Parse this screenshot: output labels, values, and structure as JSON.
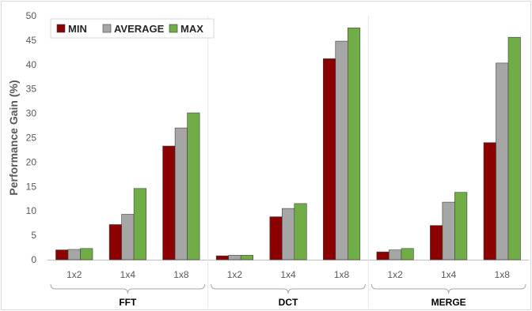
{
  "chart_data": {
    "type": "bar",
    "ylabel": "Performance Gain (%)",
    "ylim": [
      0,
      50
    ],
    "yticks": [
      0,
      5,
      10,
      15,
      20,
      25,
      30,
      35,
      40,
      45,
      50
    ],
    "grid": false,
    "legend_position": "top-left",
    "groups": [
      {
        "label": "FFT",
        "categories": [
          "1x2",
          "1x4",
          "1x8"
        ]
      },
      {
        "label": "DCT",
        "categories": [
          "1x2",
          "1x4",
          "1x8"
        ]
      },
      {
        "label": "MERGE",
        "categories": [
          "1x2",
          "1x4",
          "1x8"
        ]
      }
    ],
    "series": [
      {
        "name": "MIN",
        "color": "#8b0000",
        "values": [
          2.0,
          7.2,
          23.3,
          0.8,
          8.8,
          41.2,
          1.6,
          7.0,
          24.0
        ]
      },
      {
        "name": "AVERAGE",
        "color": "#a6a6a6",
        "values": [
          2.1,
          9.3,
          27.0,
          0.9,
          10.5,
          44.8,
          2.0,
          11.8,
          40.3
        ]
      },
      {
        "name": "MAX",
        "color": "#70ad47",
        "values": [
          2.3,
          14.6,
          30.1,
          0.9,
          11.5,
          47.5,
          2.3,
          13.8,
          45.6
        ]
      }
    ]
  }
}
